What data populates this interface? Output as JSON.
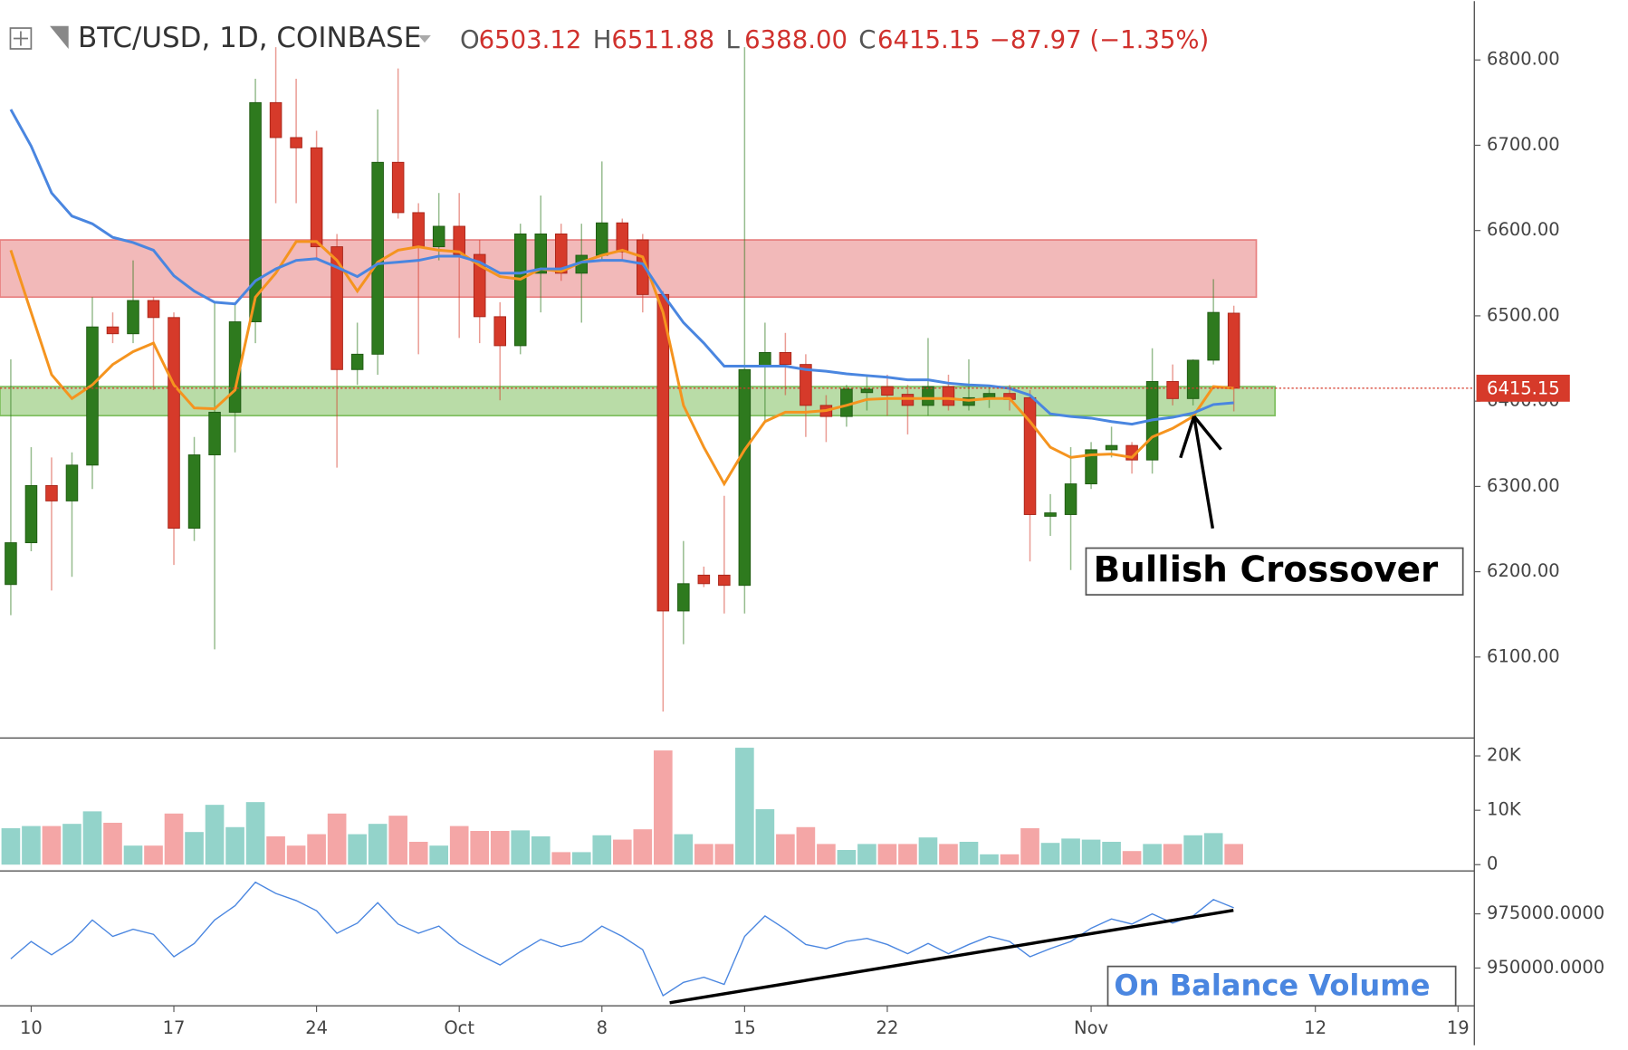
{
  "header": {
    "symbol": "BTC/USD, 1D, COINBASE",
    "ohlc": [
      [
        "O",
        "6503.12"
      ],
      [
        "H",
        "6511.88"
      ],
      [
        "L",
        "6388.00"
      ],
      [
        "C",
        "6415.15"
      ]
    ],
    "change": "−87.97 (−1.35%)"
  },
  "x_axis": {
    "xlim": [
      -0.53,
      71.8
    ],
    "xticks": [
      {
        "value": 1,
        "label": "10"
      },
      {
        "value": 8,
        "label": "17"
      },
      {
        "value": 15,
        "label": "24"
      },
      {
        "value": 22,
        "label": "Oct"
      },
      {
        "value": 29,
        "label": "8"
      },
      {
        "value": 36,
        "label": "15"
      },
      {
        "value": 43,
        "label": "22"
      },
      {
        "value": 53,
        "label": "Nov"
      },
      {
        "value": 64,
        "label": "12"
      },
      {
        "value": 71,
        "label": "19"
      }
    ]
  },
  "chart_data": [
    {
      "type": "candlestick",
      "up_color": "#2e7a1e",
      "down_color": "#d63a2a",
      "open": [
        6185,
        6234,
        6301,
        6283,
        6325,
        6487,
        6479,
        6518,
        6498,
        6251,
        6337,
        6387,
        6493,
        6750,
        6709,
        6697,
        6581,
        6437,
        6455,
        6680,
        6621,
        6581,
        6605,
        6572,
        6499,
        6465,
        6550,
        6596,
        6550,
        6571,
        6609,
        6589,
        6525,
        6154,
        6196,
        6196,
        6184,
        6441,
        6457,
        6443,
        6395,
        6382,
        6410,
        6417,
        6408,
        6395,
        6417,
        6395,
        6404,
        6409,
        6404,
        6265,
        6267,
        6303,
        6343,
        6348,
        6331,
        6423,
        6403,
        6448,
        6503.12
      ],
      "high": [
        6449,
        6346,
        6334,
        6340,
        6522,
        6504,
        6565,
        6522,
        6504,
        6358,
        6516,
        6516,
        6778,
        6815,
        6778,
        6717,
        6596,
        6492,
        6742,
        6790,
        6632,
        6644,
        6644,
        6589,
        6516,
        6608,
        6641,
        6608,
        6608,
        6681,
        6614,
        6596,
        6529,
        6236,
        6206,
        6289,
        6815,
        6492,
        6480,
        6455,
        6407,
        6419,
        6431,
        6431,
        6419,
        6474,
        6431,
        6449,
        6419,
        6419,
        6413,
        6291,
        6346,
        6352,
        6370,
        6352,
        6462,
        6443,
        6449,
        6543,
        6511.88
      ],
      "low": [
        6149,
        6224,
        6178,
        6194,
        6297,
        6468,
        6468,
        6413,
        6208,
        6236,
        6109,
        6340,
        6468,
        6632,
        6632,
        6567,
        6322,
        6419,
        6431,
        6614,
        6455,
        6565,
        6474,
        6468,
        6401,
        6455,
        6504,
        6541,
        6492,
        6565,
        6565,
        6504,
        6036,
        6115,
        6182,
        6151,
        6151,
        6376,
        6407,
        6358,
        6352,
        6370,
        6389,
        6383,
        6361,
        6383,
        6389,
        6389,
        6392,
        6389,
        6212,
        6242,
        6202,
        6297,
        6334,
        6315,
        6315,
        6395,
        6395,
        6443,
        6388
      ],
      "close": [
        6234,
        6301,
        6283,
        6325,
        6487,
        6479,
        6518,
        6498,
        6251,
        6337,
        6387,
        6493,
        6750,
        6709,
        6697,
        6581,
        6437,
        6455,
        6680,
        6621,
        6581,
        6605,
        6572,
        6499,
        6465,
        6596,
        6596,
        6550,
        6571,
        6609,
        6575,
        6525,
        6154,
        6186,
        6186,
        6184,
        6437,
        6457,
        6443,
        6395,
        6382,
        6414,
        6414,
        6407,
        6395,
        6417,
        6395,
        6404,
        6409,
        6402,
        6267,
        6269,
        6303,
        6343,
        6348,
        6331,
        6423,
        6403,
        6448,
        6504,
        6415.15
      ],
      "lines": [
        {
          "color": "#f5941f",
          "values": [
            6577,
            6504,
            6431,
            6403,
            6419,
            6443,
            6458,
            6468,
            6419,
            6392,
            6391,
            6413,
            6522,
            6550,
            6587,
            6587,
            6565,
            6529,
            6563,
            6577,
            6581,
            6577,
            6575,
            6559,
            6546,
            6543,
            6555,
            6552,
            6563,
            6571,
            6577,
            6569,
            6504,
            6395,
            6346,
            6303,
            6343,
            6376,
            6387,
            6387,
            6389,
            6395,
            6402,
            6403,
            6403,
            6403,
            6403,
            6401,
            6403,
            6403,
            6376,
            6346,
            6334,
            6337,
            6338,
            6334,
            6358,
            6368,
            6382,
            6417,
            6415
          ]
        },
        {
          "color": "#4a86e0",
          "values": [
            6742,
            6699,
            6644,
            6617,
            6608,
            6592,
            6586,
            6577,
            6547,
            6529,
            6516,
            6514,
            6541,
            6555,
            6565,
            6567,
            6557,
            6546,
            6561,
            6563,
            6565,
            6570,
            6570,
            6563,
            6550,
            6550,
            6555,
            6555,
            6563,
            6565,
            6565,
            6561,
            6525,
            6492,
            6468,
            6441,
            6441,
            6441,
            6441,
            6437,
            6435,
            6432,
            6430,
            6428,
            6425,
            6425,
            6421,
            6419,
            6418,
            6415,
            6407,
            6385,
            6382,
            6380,
            6376,
            6373,
            6378,
            6381,
            6386,
            6396,
            6398
          ]
        }
      ],
      "zones": [
        {
          "from": 6522,
          "to": 6589,
          "color": "#e88080"
        },
        {
          "from": 6383,
          "to": 6417,
          "color": "#7fbf5f"
        }
      ],
      "last_price_label": "6415.15",
      "annotation": "Bullish Crossover",
      "ylim": [
        6005,
        6869
      ],
      "yticks": [
        {
          "value": 6100,
          "label": "6100.00"
        },
        {
          "value": 6200,
          "label": "6200.00"
        },
        {
          "value": 6300,
          "label": "6300.00"
        },
        {
          "value": 6400,
          "label": "6400.00"
        },
        {
          "value": 6500,
          "label": "6500.00"
        },
        {
          "value": 6600,
          "label": "6600.00"
        },
        {
          "value": 6700,
          "label": "6700.00"
        },
        {
          "value": 6800,
          "label": "6800.00"
        }
      ]
    },
    {
      "type": "bar",
      "up_color": "#93d3ca",
      "down_color": "#f4a6a6",
      "values": [
        6700,
        7100,
        7100,
        7500,
        9800,
        7700,
        3500,
        3500,
        9400,
        6000,
        11000,
        6900,
        11500,
        5200,
        3500,
        5600,
        9400,
        5600,
        7500,
        9000,
        4200,
        3500,
        7100,
        6200,
        6200,
        6300,
        5200,
        2300,
        2300,
        5400,
        4600,
        6500,
        21000,
        5600,
        3800,
        3800,
        21500,
        10200,
        5600,
        6900,
        3800,
        2700,
        3800,
        3800,
        3800,
        5000,
        3800,
        4200,
        1900,
        1900,
        6700,
        4000,
        4800,
        4600,
        4200,
        2500,
        3800,
        3800,
        5400,
        5800,
        3800
      ],
      "ylim": [
        -1150,
        22900
      ],
      "yticks": [
        0,
        {
          "value": 10000,
          "label": "10K"
        },
        {
          "value": 20000,
          "label": "20K"
        }
      ]
    },
    {
      "type": "line",
      "color": "#4a86e0",
      "values": [
        954250,
        962260,
        956130,
        962260,
        972170,
        964620,
        967920,
        965570,
        955190,
        961320,
        972170,
        978770,
        989620,
        984430,
        981130,
        976420,
        966040,
        970750,
        980190,
        970280,
        966040,
        969340,
        961320,
        956130,
        951420,
        957550,
        963210,
        959910,
        962260,
        969340,
        964620,
        958490,
        937260,
        943400,
        945750,
        942450,
        964620,
        974060,
        967920,
        960850,
        958960,
        962260,
        963680,
        960850,
        956600,
        961320,
        956600,
        960850,
        964620,
        962260,
        955190,
        958960,
        962260,
        968400,
        972640,
        970280,
        975000,
        970750,
        974060,
        981600,
        977830
      ],
      "annotation": "On Balance Volume",
      "ylim": [
        932550,
        993870
      ],
      "yticks": [
        {
          "value": 950000,
          "label": "950000.0000"
        },
        {
          "value": 975000,
          "label": "975000.0000"
        }
      ]
    }
  ]
}
